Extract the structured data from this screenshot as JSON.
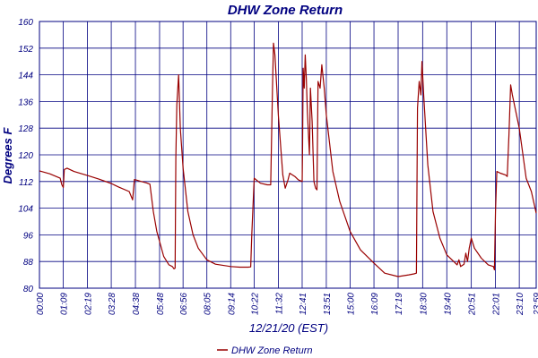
{
  "chart_data": {
    "type": "line",
    "title": "DHW Zone Return",
    "xlabel": "12/21/20 (EST)",
    "ylabel": "Degrees F",
    "ylim": [
      80,
      160
    ],
    "yticks": [
      "80",
      "88",
      "96",
      "104",
      "112",
      "120",
      "128",
      "136",
      "144",
      "152",
      "160"
    ],
    "xlim": [
      "00:00",
      "23:59"
    ],
    "xticks": [
      "00:00",
      "01:09",
      "02:19",
      "03:28",
      "04:38",
      "05:48",
      "06:56",
      "08:05",
      "09:14",
      "10:22",
      "11:32",
      "12:41",
      "13:51",
      "15:00",
      "16:09",
      "17:19",
      "18:30",
      "19:40",
      "20:51",
      "22:01",
      "23:10",
      "23:59"
    ],
    "grid": true,
    "legend_position": "bottom-center",
    "series": [
      {
        "name": "DHW Zone Return",
        "color": "#990000",
        "points": [
          [
            "00:00",
            115.2
          ],
          [
            "00:30",
            114.3
          ],
          [
            "01:00",
            113.0
          ],
          [
            "01:05",
            111.0
          ],
          [
            "01:09",
            110.2
          ],
          [
            "01:12",
            115.6
          ],
          [
            "01:20",
            116.0
          ],
          [
            "01:40",
            115.0
          ],
          [
            "02:19",
            113.8
          ],
          [
            "02:50",
            112.8
          ],
          [
            "03:28",
            111.4
          ],
          [
            "03:50",
            110.3
          ],
          [
            "04:20",
            109.0
          ],
          [
            "04:30",
            106.5
          ],
          [
            "04:35",
            112.6
          ],
          [
            "04:42",
            112.4
          ],
          [
            "04:55",
            112.0
          ],
          [
            "05:10",
            111.6
          ],
          [
            "05:20",
            111.2
          ],
          [
            "05:30",
            103.0
          ],
          [
            "05:40",
            97.0
          ],
          [
            "05:48",
            94.0
          ],
          [
            "06:00",
            89.5
          ],
          [
            "06:15",
            87.0
          ],
          [
            "06:25",
            86.5
          ],
          [
            "06:30",
            85.8
          ],
          [
            "06:33",
            86.0
          ],
          [
            "06:35",
            119.0
          ],
          [
            "06:38",
            135.0
          ],
          [
            "06:43",
            144.0
          ],
          [
            "06:48",
            128.0
          ],
          [
            "06:56",
            116.0
          ],
          [
            "07:10",
            103.0
          ],
          [
            "07:25",
            96.0
          ],
          [
            "07:40",
            92.0
          ],
          [
            "08:05",
            88.5
          ],
          [
            "08:30",
            87.2
          ],
          [
            "09:14",
            86.5
          ],
          [
            "09:40",
            86.3
          ],
          [
            "10:05",
            86.3
          ],
          [
            "10:12",
            86.4
          ],
          [
            "10:15",
            96.0
          ],
          [
            "10:22",
            113.0
          ],
          [
            "10:40",
            111.5
          ],
          [
            "11:00",
            111.0
          ],
          [
            "11:10",
            111.0
          ],
          [
            "11:15",
            140.0
          ],
          [
            "11:18",
            153.5
          ],
          [
            "11:22",
            150.0
          ],
          [
            "11:32",
            132.0
          ],
          [
            "11:45",
            114.0
          ],
          [
            "11:52",
            110.0
          ],
          [
            "12:00",
            112.5
          ],
          [
            "12:05",
            114.5
          ],
          [
            "12:20",
            113.5
          ],
          [
            "12:30",
            112.5
          ],
          [
            "12:41",
            112.0
          ],
          [
            "12:42",
            121.0
          ],
          [
            "12:44",
            146.0
          ],
          [
            "12:47",
            140.0
          ],
          [
            "12:50",
            150.0
          ],
          [
            "12:53",
            143.0
          ],
          [
            "12:56",
            133.0
          ],
          [
            "13:02",
            120.0
          ],
          [
            "13:05",
            140.0
          ],
          [
            "13:10",
            130.0
          ],
          [
            "13:15",
            112.0
          ],
          [
            "13:20",
            110.0
          ],
          [
            "13:24",
            109.5
          ],
          [
            "13:27",
            142.0
          ],
          [
            "13:33",
            140.0
          ],
          [
            "13:38",
            147.0
          ],
          [
            "13:45",
            140.0
          ],
          [
            "13:51",
            132.0
          ],
          [
            "14:10",
            115.0
          ],
          [
            "14:30",
            106.0
          ],
          [
            "15:00",
            97.0
          ],
          [
            "15:30",
            91.5
          ],
          [
            "16:09",
            87.5
          ],
          [
            "16:40",
            84.5
          ],
          [
            "17:19",
            83.5
          ],
          [
            "17:50",
            84.0
          ],
          [
            "18:05",
            84.3
          ],
          [
            "18:12",
            84.5
          ],
          [
            "18:15",
            134.0
          ],
          [
            "18:20",
            142.0
          ],
          [
            "18:25",
            138.0
          ],
          [
            "18:28",
            148.0
          ],
          [
            "18:33",
            138.0
          ],
          [
            "18:45",
            117.0
          ],
          [
            "19:00",
            103.0
          ],
          [
            "19:20",
            95.0
          ],
          [
            "19:40",
            90.0
          ],
          [
            "20:00",
            88.0
          ],
          [
            "20:10",
            87.0
          ],
          [
            "20:15",
            88.5
          ],
          [
            "20:20",
            86.5
          ],
          [
            "20:30",
            87.2
          ],
          [
            "20:35",
            90.5
          ],
          [
            "20:40",
            88.0
          ],
          [
            "20:45",
            92.0
          ],
          [
            "20:51",
            95.0
          ],
          [
            "21:00",
            92.0
          ],
          [
            "21:20",
            89.0
          ],
          [
            "21:40",
            87.0
          ],
          [
            "21:55",
            86.5
          ],
          [
            "21:58",
            85.5
          ],
          [
            "22:01",
            103.0
          ],
          [
            "22:05",
            115.0
          ],
          [
            "22:15",
            114.5
          ],
          [
            "22:30",
            114.0
          ],
          [
            "22:35",
            113.5
          ],
          [
            "22:40",
            126.0
          ],
          [
            "22:45",
            141.0
          ],
          [
            "22:50",
            138.0
          ],
          [
            "23:10",
            128.0
          ],
          [
            "23:30",
            113.0
          ],
          [
            "23:45",
            109.0
          ],
          [
            "23:59",
            102.5
          ]
        ]
      }
    ]
  }
}
